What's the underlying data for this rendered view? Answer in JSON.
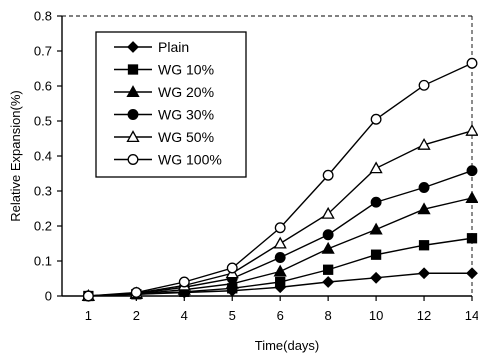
{
  "chart_data": {
    "type": "line",
    "title": "",
    "xlabel": "Time(days)",
    "ylabel": "Relative Expansion(%)",
    "x": [
      "1",
      "2",
      "4",
      "5",
      "6",
      "8",
      "10",
      "12",
      "14"
    ],
    "ylim": [
      0,
      0.8
    ],
    "yticks": [
      "0",
      "0.1",
      "0.2",
      "0.3",
      "0.4",
      "0.5",
      "0.6",
      "0.7",
      "0.8"
    ],
    "grid": false,
    "legend_position": "top-left",
    "series": [
      {
        "name": "Plain",
        "marker": "diamond-filled",
        "values": [
          0,
          0.005,
          0.01,
          0.015,
          0.025,
          0.04,
          0.052,
          0.065,
          0.065
        ]
      },
      {
        "name": "WG  10%",
        "marker": "square-filled",
        "values": [
          0,
          0.005,
          0.012,
          0.022,
          0.04,
          0.075,
          0.118,
          0.145,
          0.165
        ]
      },
      {
        "name": "WG  20%",
        "marker": "triangle-filled",
        "values": [
          0,
          0.006,
          0.018,
          0.035,
          0.07,
          0.135,
          0.19,
          0.248,
          0.28
        ]
      },
      {
        "name": "WG  30%",
        "marker": "circle-filled",
        "values": [
          0,
          0.007,
          0.025,
          0.05,
          0.11,
          0.175,
          0.268,
          0.31,
          0.358
        ]
      },
      {
        "name": "WG  50%",
        "marker": "triangle-open",
        "values": [
          0,
          0.008,
          0.03,
          0.065,
          0.15,
          0.235,
          0.365,
          0.432,
          0.472
        ]
      },
      {
        "name": "WG 100%",
        "marker": "circle-open",
        "values": [
          0,
          0.01,
          0.04,
          0.08,
          0.195,
          0.345,
          0.505,
          0.602,
          0.665
        ]
      }
    ]
  }
}
